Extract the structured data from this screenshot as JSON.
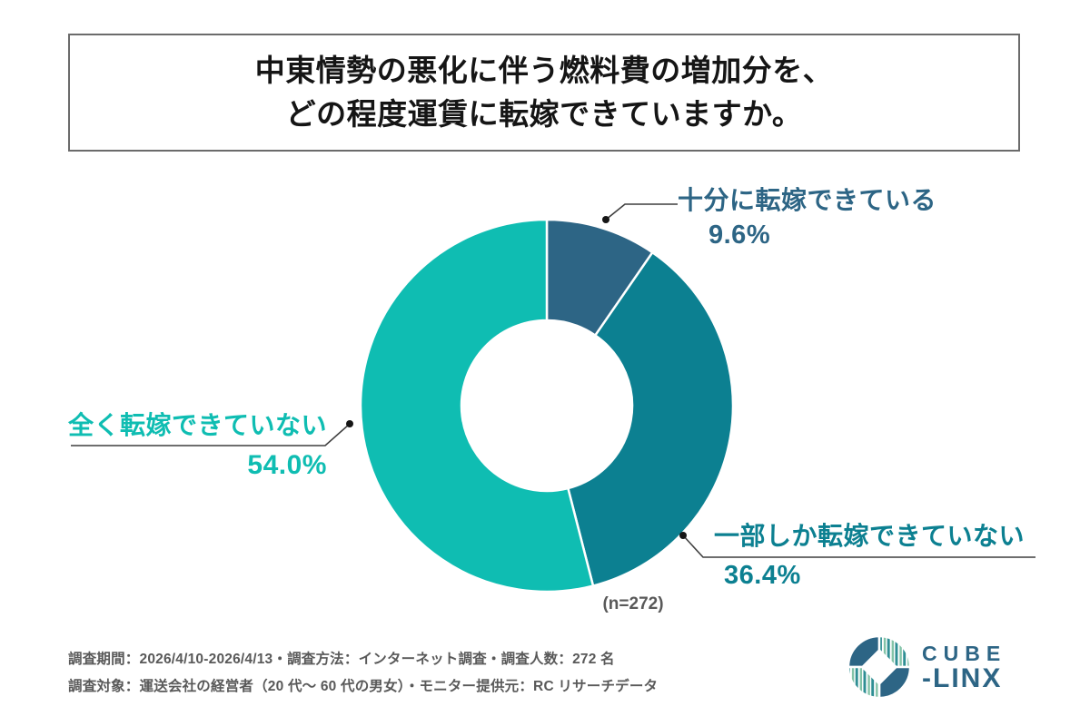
{
  "title": {
    "line1": "中東情勢の悪化に伴う燃料費の増加分を、",
    "line2": "どの程度運賃に転嫁できていますか。"
  },
  "chart_data": {
    "type": "pie",
    "subtype": "donut",
    "title": "中東情勢の悪化に伴う燃料費の増加分を、どの程度運賃に転嫁できていますか。",
    "categories": [
      "十分に転嫁できている",
      "一部しか転嫁できていない",
      "全く転嫁できていない"
    ],
    "values": [
      9.6,
      36.4,
      54.0
    ],
    "value_labels": [
      "9.6%",
      "36.4%",
      "54.0%"
    ],
    "colors": [
      "#2d6585",
      "#0c8091",
      "#0fbdb2"
    ],
    "start_angle_deg": 0,
    "direction": "clockwise",
    "inner_radius_ratio": 0.46,
    "sample_label": "(n=272)",
    "legend_position": "callout-labels"
  },
  "footnote": {
    "line1": "調査期間：2026/4/10-2026/4/13・調査方法：インターネット調査・調査人数：272 名",
    "line2": "調査対象：運送会社の経営者（20 代〜 60 代の男女）・モニター提供元：RC リサーチデータ"
  },
  "logo": {
    "top": "CUBE",
    "bottom": "-LINX"
  }
}
